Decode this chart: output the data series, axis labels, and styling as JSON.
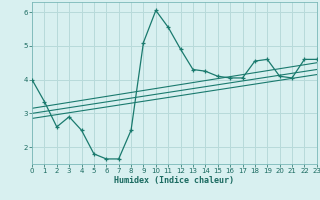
{
  "bg_color": "#d8f0f0",
  "grid_color": "#b8dada",
  "line_color": "#1a7a6e",
  "xlabel": "Humidex (Indice chaleur)",
  "xlim": [
    0,
    23
  ],
  "ylim": [
    1.5,
    6.3
  ],
  "yticks": [
    2,
    3,
    4,
    5,
    6
  ],
  "xticks": [
    0,
    1,
    2,
    3,
    4,
    5,
    6,
    7,
    8,
    9,
    10,
    11,
    12,
    13,
    14,
    15,
    16,
    17,
    18,
    19,
    20,
    21,
    22,
    23
  ],
  "curve1_x": [
    0,
    1,
    2,
    3,
    4,
    5,
    6,
    7,
    8,
    9,
    10,
    11,
    12,
    13,
    14,
    15,
    16,
    17,
    18,
    19,
    20,
    21,
    22,
    23
  ],
  "curve1_y": [
    4.0,
    3.35,
    2.6,
    2.9,
    2.5,
    1.8,
    1.65,
    1.65,
    2.5,
    5.1,
    6.05,
    5.55,
    4.9,
    4.3,
    4.25,
    4.1,
    4.05,
    4.05,
    4.55,
    4.6,
    4.1,
    4.05,
    4.6,
    4.6
  ],
  "line1_x": [
    0,
    23
  ],
  "line1_y": [
    2.85,
    4.15
  ],
  "line2_x": [
    0,
    23
  ],
  "line2_y": [
    3.0,
    4.3
  ],
  "line3_x": [
    0,
    23
  ],
  "line3_y": [
    3.15,
    4.5
  ]
}
